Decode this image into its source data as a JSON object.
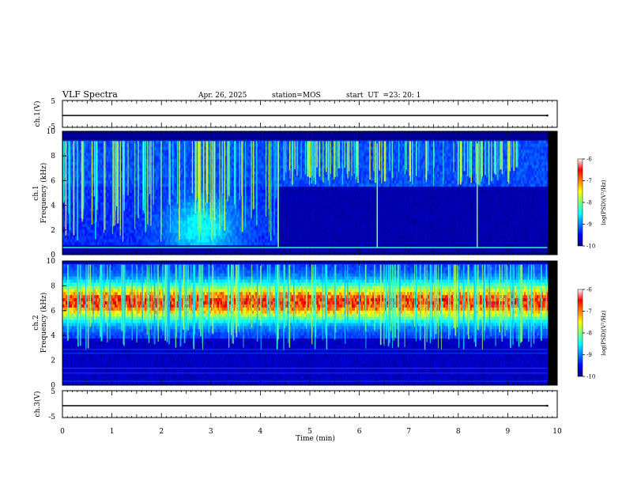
{
  "header": {
    "title": "VLF Spectra",
    "date": "Apr. 26, 2025",
    "station": "station=MOS",
    "start_label": "start  UT  =",
    "start_time": "23: 20: 1"
  },
  "chart_data": [
    {
      "type": "line",
      "name": "ch1-waveform",
      "ylabel": "ch.1(V)",
      "ylim": [
        -5,
        5
      ],
      "y_ticks": [
        "5",
        "-5"
      ],
      "xlim": [
        0,
        10
      ],
      "x": [
        0,
        2,
        4,
        6,
        8,
        9.8
      ],
      "values": [
        0,
        0,
        0,
        0,
        0,
        0
      ]
    },
    {
      "type": "heatmap",
      "name": "ch1-spectrogram",
      "ylabel_line1": "ch.1",
      "ylabel_line2": "Frequency (kHz)",
      "ylim": [
        0,
        10
      ],
      "y_ticks": [
        "0",
        "2",
        "4",
        "6",
        "8",
        "10"
      ],
      "xlim": [
        0,
        10
      ],
      "data_end_min": 9.8,
      "colorbar": {
        "label": "log(PSD)(V²/Hz)",
        "range": [
          -10,
          -6
        ],
        "ticks": [
          "-6",
          "-7",
          "-8",
          "-9",
          "-10"
        ]
      }
    },
    {
      "type": "heatmap",
      "name": "ch2-spectrogram",
      "ylabel_line1": "ch.2",
      "ylabel_line2": "Frequency (kHz)",
      "ylim": [
        0,
        10
      ],
      "y_ticks": [
        "0",
        "2",
        "4",
        "6",
        "8",
        "10"
      ],
      "xlim": [
        0,
        10
      ],
      "data_end_min": 9.8,
      "colorbar": {
        "label": "log(PSD)(V²/Hz)",
        "range": [
          -10,
          -6
        ],
        "ticks": [
          "-6",
          "-7",
          "-8",
          "-9",
          "-10"
        ]
      }
    },
    {
      "type": "line",
      "name": "ch3-waveform",
      "ylabel": "ch.3(V)",
      "ylim": [
        -5,
        5
      ],
      "y_ticks": [
        "5",
        "-5"
      ],
      "xlim": [
        0,
        10
      ],
      "x": [
        0,
        2,
        4,
        6,
        8,
        9.8
      ],
      "values": [
        0,
        0,
        0,
        0,
        0,
        0
      ]
    }
  ],
  "x_axis": {
    "label": "Time (min)",
    "range": [
      0,
      10
    ],
    "ticks": [
      "0",
      "1",
      "2",
      "3",
      "4",
      "5",
      "6",
      "7",
      "8",
      "9",
      "10"
    ]
  }
}
